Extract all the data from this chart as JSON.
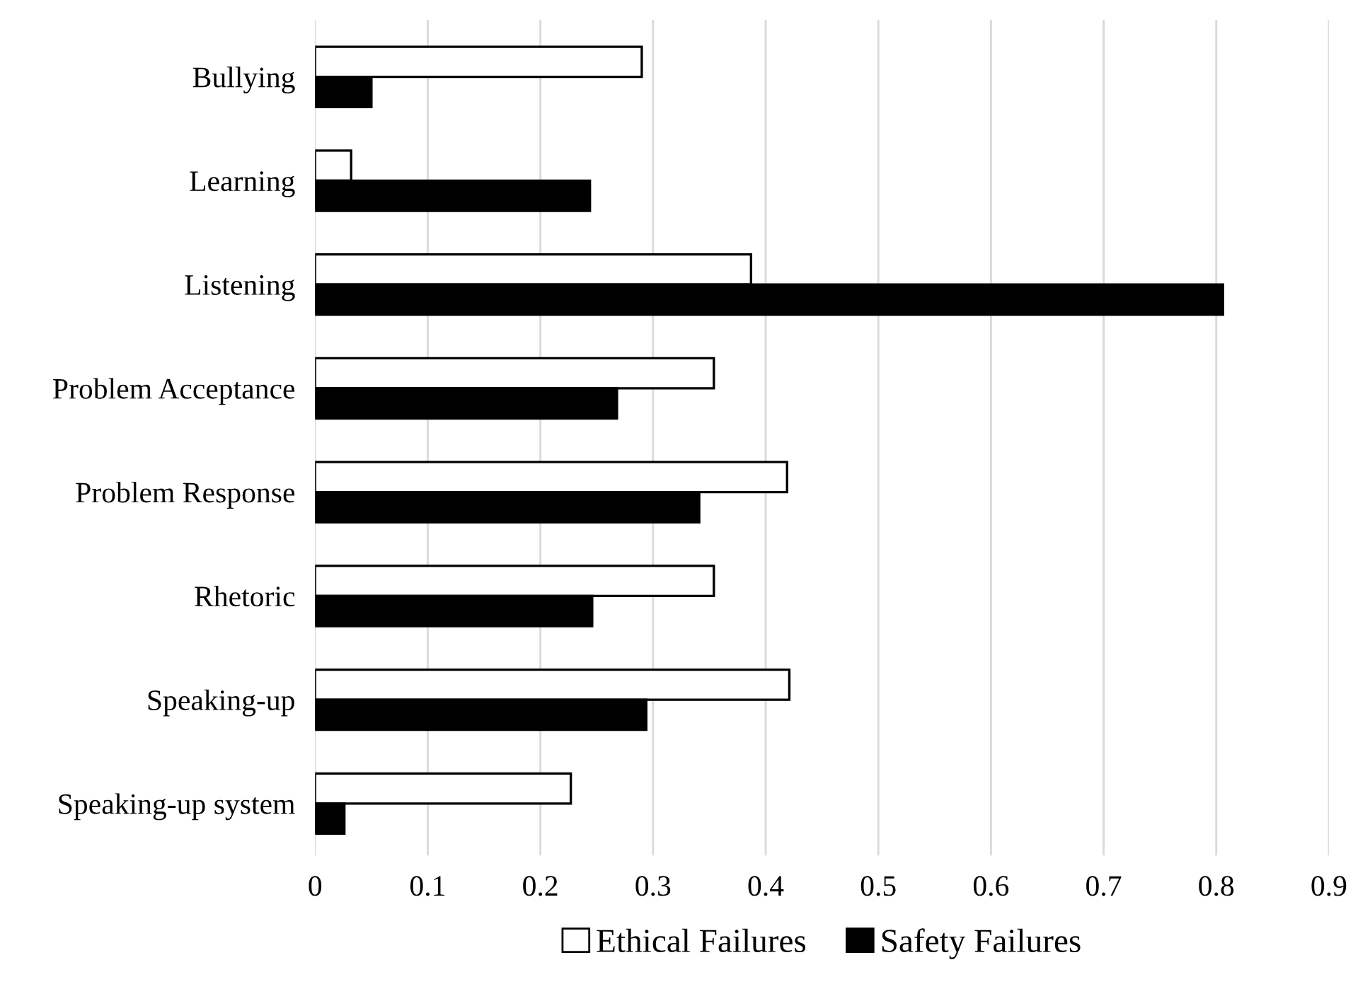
{
  "chart_data": {
    "type": "bar",
    "orientation": "horizontal",
    "categories": [
      "Bullying",
      "Learning",
      "Listening",
      "Problem Acceptance",
      "Problem Response",
      "Rhetoric",
      "Speaking-up",
      "Speaking-up system"
    ],
    "series": [
      {
        "name": "Ethical Failures",
        "color": "#ffffff",
        "values": [
          0.29,
          0.032,
          0.387,
          0.354,
          0.419,
          0.354,
          0.421,
          0.227
        ]
      },
      {
        "name": "Safety Failures",
        "color": "#000000",
        "values": [
          0.05,
          0.244,
          0.806,
          0.268,
          0.341,
          0.246,
          0.294,
          0.026
        ]
      }
    ],
    "xlim": [
      0,
      0.9
    ],
    "xticks": [
      0,
      0.1,
      0.2,
      0.3,
      0.4,
      0.5,
      0.6,
      0.7,
      0.8,
      0.9
    ],
    "grid": "x",
    "legend": "bottom"
  }
}
